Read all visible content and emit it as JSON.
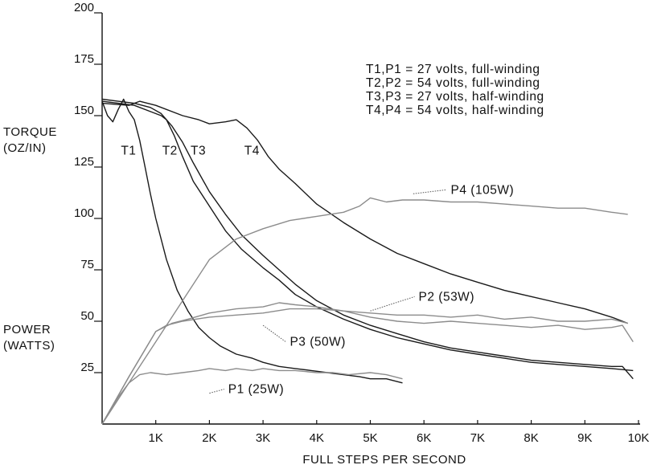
{
  "chart_data": {
    "type": "line",
    "title": "",
    "xlabel": "FULL STEPS PER SECOND",
    "ylabel_torque": [
      "TORQUE",
      "(OZ/IN)"
    ],
    "ylabel_power": [
      "POWER",
      "(WATTS)"
    ],
    "xlim": [
      0,
      10000
    ],
    "ylim": [
      0,
      200
    ],
    "x_ticks": [
      {
        "value": 1000,
        "label": "1K"
      },
      {
        "value": 2000,
        "label": "2K"
      },
      {
        "value": 3000,
        "label": "3K"
      },
      {
        "value": 4000,
        "label": "4K"
      },
      {
        "value": 5000,
        "label": "5K"
      },
      {
        "value": 6000,
        "label": "6K"
      },
      {
        "value": 7000,
        "label": "7K"
      },
      {
        "value": 8000,
        "label": "8K"
      },
      {
        "value": 9000,
        "label": "9K"
      },
      {
        "value": 10000,
        "label": "10K"
      }
    ],
    "y_ticks": [
      {
        "value": 25,
        "label": "25"
      },
      {
        "value": 50,
        "label": "50"
      },
      {
        "value": 75,
        "label": "75"
      },
      {
        "value": 100,
        "label": "100"
      },
      {
        "value": 125,
        "label": "125"
      },
      {
        "value": 150,
        "label": "150"
      },
      {
        "value": 175,
        "label": "175"
      },
      {
        "value": 200,
        "label": "200"
      }
    ],
    "legend": {
      "placement": "top-right",
      "entries": [
        "T1,P1 = 27 volts, full-winding",
        "T2,P2 = 54 volts, full-winding",
        "T3,P3 = 27 volts, half-winding",
        "T4,P4 = 54 volts, half-winding"
      ]
    },
    "colors": {
      "torque": "#1a1a1a",
      "power": "#8c8c8c"
    },
    "series": [
      {
        "name": "T1",
        "kind": "torque",
        "x": [
          0,
          100,
          200,
          300,
          400,
          500,
          600,
          700,
          800,
          900,
          1000,
          1200,
          1400,
          1600,
          1800,
          2000,
          2200,
          2500,
          2800,
          3000,
          3300,
          3600,
          3900,
          4200,
          4500,
          4800,
          5000,
          5300,
          5600
        ],
        "y": [
          157,
          150,
          147,
          153,
          158,
          152,
          148,
          138,
          125,
          112,
          100,
          80,
          65,
          55,
          47,
          42,
          38,
          34,
          32,
          30,
          28,
          27,
          26,
          25,
          24,
          23,
          22,
          22,
          20
        ]
      },
      {
        "name": "T2",
        "kind": "torque",
        "x": [
          0,
          300,
          600,
          900,
          1100,
          1200,
          1350,
          1500,
          1700,
          2000,
          2300,
          2600,
          3000,
          3300,
          3600,
          4000,
          4500,
          5000,
          5500,
          6000,
          6500,
          7000,
          7500,
          8000,
          8500,
          9000,
          9500,
          9900
        ],
        "y": [
          157,
          156,
          155,
          152,
          150,
          148,
          140,
          130,
          118,
          106,
          94,
          85,
          76,
          70,
          63,
          57,
          51,
          46,
          42,
          39,
          36,
          34,
          32,
          30,
          29,
          28,
          27,
          26
        ]
      },
      {
        "name": "T3",
        "kind": "torque",
        "x": [
          0,
          300,
          600,
          900,
          1100,
          1300,
          1500,
          1700,
          2000,
          2300,
          2600,
          3000,
          3300,
          3600,
          4000,
          4500,
          5000,
          5500,
          6000,
          6500,
          7000,
          7500,
          8000,
          8500,
          9000,
          9500,
          9700,
          9900
        ],
        "y": [
          158,
          157,
          156,
          154,
          151,
          145,
          137,
          127,
          113,
          102,
          92,
          82,
          75,
          68,
          60,
          53,
          48,
          44,
          40,
          37,
          35,
          33,
          31,
          30,
          29,
          28,
          28,
          22
        ]
      },
      {
        "name": "T4",
        "kind": "torque",
        "x": [
          0,
          500,
          700,
          1000,
          1500,
          1800,
          2000,
          2300,
          2500,
          2700,
          2900,
          3100,
          3300,
          3600,
          4000,
          4500,
          5000,
          5500,
          6000,
          6500,
          7000,
          7500,
          8000,
          8500,
          9000,
          9500,
          9800
        ],
        "y": [
          156,
          155,
          157,
          155,
          150,
          148,
          146,
          147,
          148,
          144,
          138,
          130,
          124,
          117,
          107,
          98,
          90,
          83,
          78,
          73,
          69,
          65,
          62,
          59,
          56,
          52,
          49
        ]
      },
      {
        "name": "P1 (25W)",
        "kind": "power",
        "x": [
          0,
          300,
          500,
          700,
          900,
          1200,
          1500,
          1800,
          2000,
          2300,
          2500,
          2800,
          3000,
          3300,
          3600,
          4000,
          4300,
          4600,
          5000,
          5300,
          5600
        ],
        "y": [
          0,
          13,
          20,
          24,
          25,
          24,
          25,
          26,
          27,
          26,
          27,
          26,
          27,
          26,
          26,
          25,
          25,
          24,
          25,
          24,
          22
        ]
      },
      {
        "name": "P2 (53W)",
        "kind": "power",
        "x": [
          0,
          500,
          1000,
          1200,
          1500,
          2000,
          2500,
          3000,
          3500,
          4000,
          4500,
          5000,
          5500,
          6000,
          6500,
          7000,
          7500,
          8000,
          8500,
          9000,
          9500,
          9800
        ],
        "y": [
          0,
          23,
          45,
          48,
          50,
          52,
          53,
          54,
          56,
          56,
          55,
          54,
          53,
          53,
          52,
          53,
          51,
          52,
          50,
          50,
          51,
          49
        ]
      },
      {
        "name": "P3 (50W)",
        "kind": "power",
        "x": [
          0,
          500,
          1000,
          1300,
          1600,
          2000,
          2500,
          3000,
          3300,
          3600,
          4000,
          4500,
          5000,
          5500,
          6000,
          6500,
          7000,
          7500,
          8000,
          8500,
          9000,
          9500,
          9700,
          9900
        ],
        "y": [
          0,
          23,
          45,
          49,
          51,
          54,
          56,
          57,
          59,
          58,
          57,
          55,
          52,
          50,
          49,
          50,
          49,
          48,
          47,
          48,
          46,
          47,
          48,
          40
        ]
      },
      {
        "name": "P4 (105W)",
        "kind": "power",
        "x": [
          0,
          500,
          1000,
          1500,
          2000,
          2500,
          3000,
          3500,
          4000,
          4500,
          4800,
          5000,
          5300,
          5600,
          6000,
          6500,
          7000,
          7500,
          8000,
          8500,
          9000,
          9500,
          9800
        ],
        "y": [
          0,
          20,
          40,
          60,
          80,
          90,
          95,
          99,
          101,
          103,
          106,
          110,
          108,
          109,
          109,
          108,
          108,
          107,
          106,
          105,
          105,
          103,
          102
        ]
      }
    ],
    "curve_labels": [
      {
        "series": "T1",
        "text": "T1",
        "x": 350,
        "y": 131,
        "leader": false
      },
      {
        "series": "T2",
        "text": "T2",
        "x": 1120,
        "y": 131,
        "leader": false
      },
      {
        "series": "T3",
        "text": "T3",
        "x": 1650,
        "y": 131,
        "leader": false
      },
      {
        "series": "T4",
        "text": "T4",
        "x": 2650,
        "y": 131,
        "leader": false
      },
      {
        "series": "P4 (105W)",
        "text": "P4 (105W)",
        "x": 6500,
        "y": 112,
        "leader": true,
        "ax": 5800,
        "ay": 112
      },
      {
        "series": "P2 (53W)",
        "text": "P2 (53W)",
        "x": 5900,
        "y": 60,
        "leader": true,
        "ax": 5000,
        "ay": 55
      },
      {
        "series": "P3 (50W)",
        "text": "P3 (50W)",
        "x": 3500,
        "y": 38,
        "leader": true,
        "ax": 3000,
        "ay": 48
      },
      {
        "series": "P1 (25W)",
        "text": "P1 (25W)",
        "x": 2350,
        "y": 15,
        "leader": true,
        "ax": 2000,
        "ay": 15
      }
    ]
  }
}
